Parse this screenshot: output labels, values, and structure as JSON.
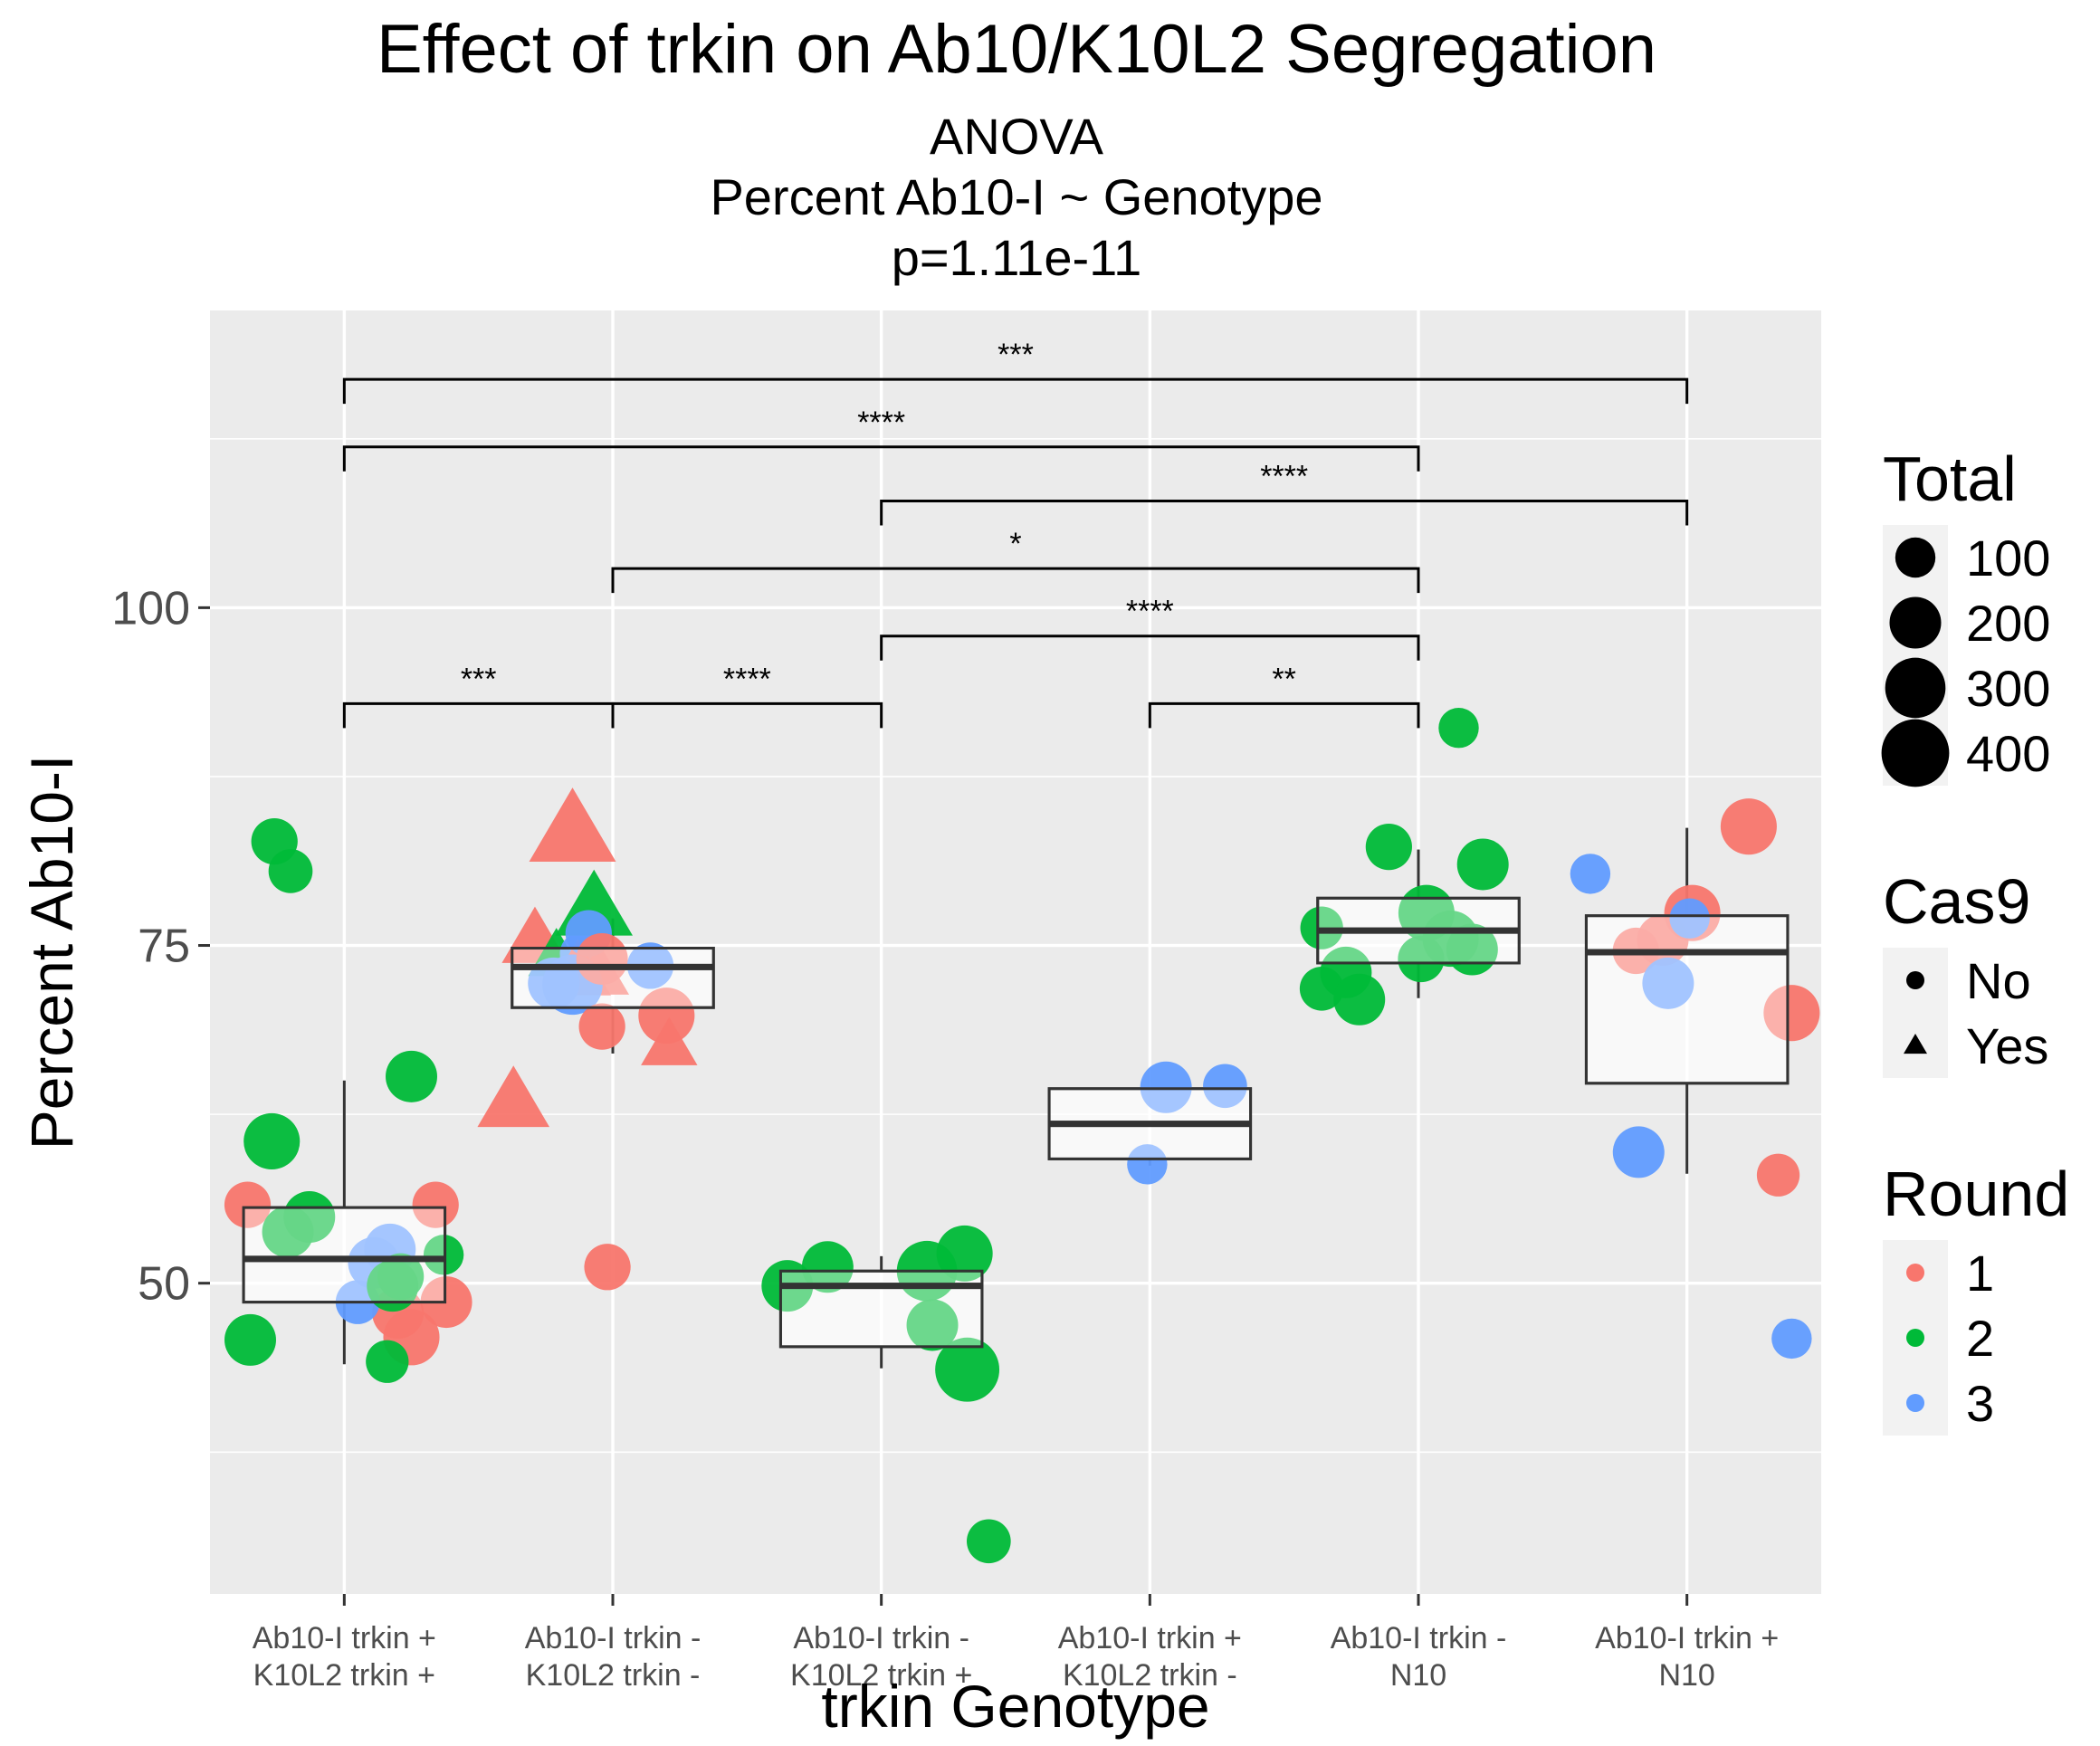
{
  "chart_data": {
    "type": "box",
    "title": "Effect of trkin on Ab10/K10L2 Segregation",
    "subtitle_lines": [
      "ANOVA",
      "Percent Ab10-I ~ Genotype",
      "p=1.11e-11"
    ],
    "xlabel": "trkin Genotype",
    "ylabel": "Percent Ab10-I",
    "ylim": [
      27,
      122
    ],
    "yticks": [
      50,
      75,
      100
    ],
    "grid": true,
    "categories": [
      [
        "Ab10-I trkin +",
        "K10L2 trkin +"
      ],
      [
        "Ab10-I trkin -",
        "K10L2 trkin -"
      ],
      [
        "Ab10-I trkin -",
        "K10L2 trkin +"
      ],
      [
        "Ab10-I trkin +",
        "K10L2 trkin -"
      ],
      [
        "Ab10-I trkin -",
        "N10"
      ],
      [
        "Ab10-I trkin +",
        "N10"
      ]
    ],
    "boxes": [
      {
        "low": 44,
        "q1": 48.6,
        "median": 51.8,
        "q3": 55.6,
        "high": 65
      },
      {
        "low": 67,
        "q1": 70.4,
        "median": 73.4,
        "q3": 74.8,
        "high": 77
      },
      {
        "low": 43.7,
        "q1": 45.3,
        "median": 49.8,
        "q3": 50.9,
        "high": 52
      },
      {
        "low": 58.7,
        "q1": 59.2,
        "median": 61.8,
        "q3": 64.4,
        "high": 64.4
      },
      {
        "low": 71.1,
        "q1": 73.7,
        "median": 76.1,
        "q3": 78.5,
        "high": 82.1
      },
      {
        "low": 58.1,
        "q1": 64.8,
        "median": 74.5,
        "q3": 77.2,
        "high": 83.7
      }
    ],
    "legends": [
      {
        "title": "Total",
        "type": "size",
        "entries": [
          {
            "label": "100",
            "value": 100
          },
          {
            "label": "200",
            "value": 200
          },
          {
            "label": "300",
            "value": 300
          },
          {
            "label": "400",
            "value": 400
          }
        ]
      },
      {
        "title": "Cas9",
        "type": "shape",
        "entries": [
          {
            "label": "No",
            "shape": "circle"
          },
          {
            "label": "Yes",
            "shape": "triangle"
          }
        ]
      },
      {
        "title": "Round",
        "type": "color",
        "entries": [
          {
            "label": "1",
            "color": "#F8766D"
          },
          {
            "label": "2",
            "color": "#00BA38"
          },
          {
            "label": "3",
            "color": "#619CFF"
          }
        ]
      }
    ],
    "legend_position": "right",
    "significance": [
      {
        "from": 1,
        "to": 6,
        "y": 116.9,
        "label": "***"
      },
      {
        "from": 1,
        "to": 5,
        "y": 111.9,
        "label": "****"
      },
      {
        "from": 3,
        "to": 6,
        "y": 107.9,
        "label": "****"
      },
      {
        "from": 2,
        "to": 5,
        "y": 102.9,
        "label": "*"
      },
      {
        "from": 3,
        "to": 5,
        "y": 97.9,
        "label": "****"
      },
      {
        "from": 1,
        "to": 2,
        "y": 92.9,
        "label": "***"
      },
      {
        "from": 2,
        "to": 3,
        "y": 92.9,
        "label": "****"
      },
      {
        "from": 4,
        "to": 5,
        "y": 92.9,
        "label": "**"
      }
    ],
    "points": [
      {
        "group": 1,
        "dx": -0.36,
        "y": 55.8,
        "round": 1,
        "cas9": "No",
        "total": 150
      },
      {
        "group": 1,
        "dx": -0.27,
        "y": 60.5,
        "round": 2,
        "cas9": "No",
        "total": 250
      },
      {
        "group": 1,
        "dx": -0.21,
        "y": 53.8,
        "round": 2,
        "cas9": "No",
        "total": 200
      },
      {
        "group": 1,
        "dx": -0.13,
        "y": 54.9,
        "round": 2,
        "cas9": "No",
        "total": 200
      },
      {
        "group": 1,
        "dx": -0.26,
        "y": 82.7,
        "round": 2,
        "cas9": "No",
        "total": 150
      },
      {
        "group": 1,
        "dx": -0.2,
        "y": 80.5,
        "round": 2,
        "cas9": "No",
        "total": 130
      },
      {
        "group": 1,
        "dx": -0.35,
        "y": 45.8,
        "round": 2,
        "cas9": "No",
        "total": 200
      },
      {
        "group": 1,
        "dx": 0.25,
        "y": 65.3,
        "round": 2,
        "cas9": "No",
        "total": 200
      },
      {
        "group": 1,
        "dx": 0.34,
        "y": 55.8,
        "round": 1,
        "cas9": "No",
        "total": 150
      },
      {
        "group": 1,
        "dx": 0.37,
        "y": 52.1,
        "round": 2,
        "cas9": "No",
        "total": 100
      },
      {
        "group": 1,
        "dx": 0.38,
        "y": 48.6,
        "round": 1,
        "cas9": "No",
        "total": 200
      },
      {
        "group": 1,
        "dx": 0.25,
        "y": 46.0,
        "round": 1,
        "cas9": "No",
        "total": 250
      },
      {
        "group": 1,
        "dx": 0.2,
        "y": 47.8,
        "round": 1,
        "cas9": "No",
        "total": 200
      },
      {
        "group": 1,
        "dx": 0.16,
        "y": 44.2,
        "round": 2,
        "cas9": "No",
        "total": 120
      },
      {
        "group": 1,
        "dx": 0.05,
        "y": 48.6,
        "round": 3,
        "cas9": "No",
        "total": 130
      },
      {
        "group": 1,
        "dx": 0.17,
        "y": 52.5,
        "round": 3,
        "cas9": "No",
        "total": 200
      },
      {
        "group": 1,
        "dx": 0.11,
        "y": 51.5,
        "round": 3,
        "cas9": "No",
        "total": 200
      },
      {
        "group": 1,
        "dx": 0.18,
        "y": 49.8,
        "round": 2,
        "cas9": "No",
        "total": 200
      },
      {
        "group": 1,
        "dx": 0.21,
        "y": 50.5,
        "round": 2,
        "cas9": "No",
        "total": 150
      },
      {
        "group": 2,
        "dx": -0.29,
        "y": 75.3,
        "round": 1,
        "cas9": "Yes",
        "total": 200
      },
      {
        "group": 2,
        "dx": -0.21,
        "y": 74.1,
        "round": 2,
        "cas9": "Yes",
        "total": 130
      },
      {
        "group": 2,
        "dx": -0.12,
        "y": 74.4,
        "round": 3,
        "cas9": "No",
        "total": 110
      },
      {
        "group": 2,
        "dx": -0.13,
        "y": 72.9,
        "round": 1,
        "cas9": "Yes",
        "total": 200
      },
      {
        "group": 2,
        "dx": -0.05,
        "y": 72.8,
        "round": 1,
        "cas9": "Yes",
        "total": 150
      },
      {
        "group": 2,
        "dx": -0.22,
        "y": 72.2,
        "round": 3,
        "cas9": "No",
        "total": 200
      },
      {
        "group": 2,
        "dx": -0.15,
        "y": 72.1,
        "round": 3,
        "cas9": "No",
        "total": 300
      },
      {
        "group": 2,
        "dx": -0.37,
        "y": 63.3,
        "round": 1,
        "cas9": "Yes",
        "total": 250
      },
      {
        "group": 2,
        "dx": -0.15,
        "y": 83.3,
        "round": 1,
        "cas9": "Yes",
        "total": 400
      },
      {
        "group": 2,
        "dx": -0.07,
        "y": 77.6,
        "round": 2,
        "cas9": "Yes",
        "total": 300
      },
      {
        "group": 2,
        "dx": -0.09,
        "y": 75.9,
        "round": 3,
        "cas9": "No",
        "total": 150
      },
      {
        "group": 2,
        "dx": -0.04,
        "y": 74.0,
        "round": 1,
        "cas9": "No",
        "total": 200
      },
      {
        "group": 2,
        "dx": -0.04,
        "y": 69.0,
        "round": 1,
        "cas9": "No",
        "total": 150
      },
      {
        "group": 2,
        "dx": 0.14,
        "y": 73.5,
        "round": 3,
        "cas9": "No",
        "total": 150
      },
      {
        "group": 2,
        "dx": 0.2,
        "y": 69.8,
        "round": 1,
        "cas9": "No",
        "total": 250
      },
      {
        "group": 2,
        "dx": 0.21,
        "y": 67.5,
        "round": 1,
        "cas9": "Yes",
        "total": 130
      },
      {
        "group": 2,
        "dx": -0.02,
        "y": 51.2,
        "round": 1,
        "cas9": "No",
        "total": 150
      },
      {
        "group": 3,
        "dx": -0.35,
        "y": 49.8,
        "round": 2,
        "cas9": "No",
        "total": 200
      },
      {
        "group": 3,
        "dx": -0.2,
        "y": 51.2,
        "round": 2,
        "cas9": "No",
        "total": 200
      },
      {
        "group": 3,
        "dx": 0.17,
        "y": 50.9,
        "round": 2,
        "cas9": "No",
        "total": 300
      },
      {
        "group": 3,
        "dx": 0.31,
        "y": 52.2,
        "round": 2,
        "cas9": "No",
        "total": 250
      },
      {
        "group": 3,
        "dx": 0.19,
        "y": 46.9,
        "round": 2,
        "cas9": "No",
        "total": 200
      },
      {
        "group": 3,
        "dx": 0.32,
        "y": 43.6,
        "round": 2,
        "cas9": "No",
        "total": 350
      },
      {
        "group": 3,
        "dx": 0.4,
        "y": 30.9,
        "round": 2,
        "cas9": "No",
        "total": 130
      },
      {
        "group": 4,
        "dx": -0.01,
        "y": 58.8,
        "round": 3,
        "cas9": "No",
        "total": 100
      },
      {
        "group": 4,
        "dx": 0.06,
        "y": 64.5,
        "round": 3,
        "cas9": "No",
        "total": 200
      },
      {
        "group": 4,
        "dx": 0.28,
        "y": 64.6,
        "round": 3,
        "cas9": "No",
        "total": 130
      },
      {
        "group": 5,
        "dx": -0.36,
        "y": 76.3,
        "round": 2,
        "cas9": "No",
        "total": 120
      },
      {
        "group": 5,
        "dx": -0.36,
        "y": 71.8,
        "round": 2,
        "cas9": "No",
        "total": 130
      },
      {
        "group": 5,
        "dx": -0.27,
        "y": 73.0,
        "round": 2,
        "cas9": "No",
        "total": 200
      },
      {
        "group": 5,
        "dx": -0.22,
        "y": 71.0,
        "round": 2,
        "cas9": "No",
        "total": 200
      },
      {
        "group": 5,
        "dx": -0.11,
        "y": 82.3,
        "round": 2,
        "cas9": "No",
        "total": 150
      },
      {
        "group": 5,
        "dx": 0.03,
        "y": 77.4,
        "round": 2,
        "cas9": "No",
        "total": 250
      },
      {
        "group": 5,
        "dx": 0.01,
        "y": 74.0,
        "round": 2,
        "cas9": "No",
        "total": 150
      },
      {
        "group": 5,
        "dx": 0.15,
        "y": 91.1,
        "round": 2,
        "cas9": "No",
        "total": 100
      },
      {
        "group": 5,
        "dx": 0.12,
        "y": 75.5,
        "round": 2,
        "cas9": "No",
        "total": 250
      },
      {
        "group": 5,
        "dx": 0.2,
        "y": 74.7,
        "round": 2,
        "cas9": "No",
        "total": 200
      },
      {
        "group": 5,
        "dx": 0.24,
        "y": 81.0,
        "round": 2,
        "cas9": "No",
        "total": 200
      },
      {
        "group": 6,
        "dx": -0.36,
        "y": 80.3,
        "round": 3,
        "cas9": "No",
        "total": 100
      },
      {
        "group": 6,
        "dx": -0.19,
        "y": 74.6,
        "round": 1,
        "cas9": "No",
        "total": 150
      },
      {
        "group": 6,
        "dx": -0.09,
        "y": 75.4,
        "round": 1,
        "cas9": "No",
        "total": 200
      },
      {
        "group": 6,
        "dx": -0.07,
        "y": 72.2,
        "round": 3,
        "cas9": "No",
        "total": 200
      },
      {
        "group": 6,
        "dx": 0.02,
        "y": 77.4,
        "round": 1,
        "cas9": "No",
        "total": 250
      },
      {
        "group": 6,
        "dx": 0.01,
        "y": 77.0,
        "round": 3,
        "cas9": "No",
        "total": 100
      },
      {
        "group": 6,
        "dx": 0.23,
        "y": 83.8,
        "round": 1,
        "cas9": "No",
        "total": 250
      },
      {
        "group": 6,
        "dx": 0.39,
        "y": 70.0,
        "round": 1,
        "cas9": "No",
        "total": 250
      },
      {
        "group": 6,
        "dx": -0.18,
        "y": 59.7,
        "round": 3,
        "cas9": "No",
        "total": 200
      },
      {
        "group": 6,
        "dx": 0.34,
        "y": 58.0,
        "round": 1,
        "cas9": "No",
        "total": 120
      },
      {
        "group": 6,
        "dx": 0.39,
        "y": 45.9,
        "round": 3,
        "cas9": "No",
        "total": 100
      }
    ]
  }
}
